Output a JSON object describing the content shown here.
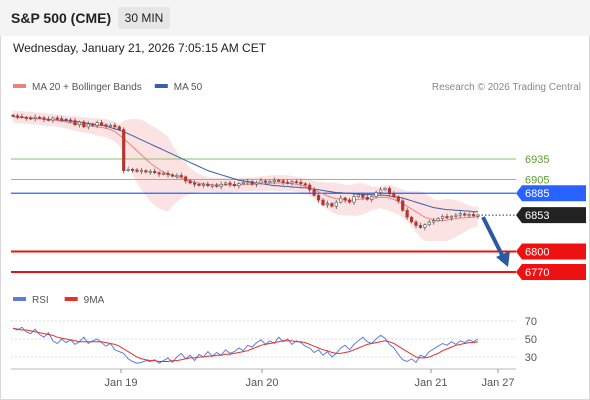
{
  "header": {
    "title": "S&P 500 (CME)",
    "interval": "30 MIN"
  },
  "datetime": "Wednesday, January 21, 2026 7:05:15 AM CET",
  "credit": "Research © 2026 Trading Central",
  "colors": {
    "ma20": "#f08080",
    "ma50": "#3b5ea8",
    "candle": "#b5362f",
    "support": "#ee1111",
    "resistance": "#8dc26b",
    "pivot": "#2962ff",
    "arrow": "#2c5aa0",
    "last": "#222222",
    "rsi": "#5b7fd8",
    "rsi_ma": "#e53030"
  },
  "legend": [
    {
      "label": "MA 20 + Bollinger Bands",
      "color": "#f08080"
    },
    {
      "label": "MA 50",
      "color": "#3b5ea8"
    }
  ],
  "rsi_legend": [
    {
      "label": "RSI",
      "color": "#5b7fd8"
    },
    {
      "label": "9MA",
      "color": "#e53030"
    }
  ],
  "chart_data": {
    "type": "candlestick",
    "x_labels": [
      "Jan 19",
      "Jan 20",
      "Jan 21",
      "Jan 27"
    ],
    "y_range": [
      6760,
      7015
    ],
    "last_price": 6853,
    "forecast_target": 6770,
    "levels": [
      {
        "value": 6935,
        "label": "6935",
        "role": "resistance"
      },
      {
        "value": 6905,
        "label": "6905",
        "role": "resistance"
      },
      {
        "value": 6885,
        "label": "6885",
        "role": "pivot"
      },
      {
        "value": 6853,
        "label": "6853",
        "role": "last"
      },
      {
        "value": 6800,
        "label": "6800",
        "role": "support"
      },
      {
        "value": 6770,
        "label": "6770",
        "role": "support"
      }
    ],
    "price_close": [
      6998,
      6997,
      6996,
      6995,
      6994,
      6996,
      6995,
      6993,
      6992,
      6995,
      6994,
      6993,
      6992,
      6991,
      6985,
      6989,
      6982,
      6986,
      6984,
      6988,
      6985,
      6983,
      6984,
      6982,
      6978,
      6918,
      6920,
      6919,
      6917,
      6918,
      6916,
      6917,
      6915,
      6913,
      6914,
      6912,
      6910,
      6911,
      6909,
      6903,
      6900,
      6898,
      6897,
      6898,
      6896,
      6897,
      6895,
      6898,
      6900,
      6898,
      6896,
      6899,
      6901,
      6902,
      6898,
      6900,
      6903,
      6901,
      6902,
      6904,
      6903,
      6901,
      6900,
      6902,
      6901,
      6899,
      6897,
      6890,
      6882,
      6875,
      6868,
      6870,
      6866,
      6872,
      6878,
      6875,
      6872,
      6880,
      6883,
      6879,
      6876,
      6880,
      6886,
      6890,
      6892,
      6884,
      6880,
      6874,
      6860,
      6850,
      6843,
      6838,
      6835,
      6839,
      6843,
      6845,
      6848,
      6851,
      6849,
      6851,
      6853,
      6855,
      6853,
      6854,
      6852,
      6853
    ],
    "ma20": [
      6997,
      6996,
      6996,
      6995,
      6995,
      6994,
      6994,
      6993,
      6992,
      6992,
      6991,
      6990,
      6989,
      6988,
      6987,
      6986,
      6985,
      6984,
      6983,
      6982,
      6981,
      6980,
      6978,
      6975,
      6970,
      6965,
      6959,
      6953,
      6947,
      6941,
      6935,
      6929,
      6924,
      6920,
      6916,
      6913,
      6911,
      6909,
      6907,
      6905,
      6903,
      6901,
      6900,
      6899,
      6898,
      6897,
      6897,
      6897,
      6897,
      6897,
      6897,
      6897,
      6898,
      6898,
      6898,
      6899,
      6899,
      6899,
      6900,
      6900,
      6900,
      6900,
      6900,
      6899,
      6898,
      6897,
      6895,
      6893,
      6890,
      6887,
      6884,
      6881,
      6879,
      6877,
      6876,
      6875,
      6875,
      6875,
      6876,
      6877,
      6877,
      6878,
      6878,
      6879,
      6879,
      6878,
      6876,
      6873,
      6870,
      6866,
      6862,
      6858,
      6854,
      6850,
      6848,
      6846,
      6845,
      6845,
      6846,
      6847,
      6848,
      6849,
      6849,
      6850,
      6850,
      6851
    ],
    "ma50": [
      6997,
      6996,
      6996,
      6995,
      6995,
      6994,
      6994,
      6993,
      6993,
      6992,
      6992,
      6991,
      6991,
      6990,
      6990,
      6989,
      6988,
      6987,
      6986,
      6985,
      6984,
      6983,
      6981,
      6979,
      6977,
      6975,
      6972,
      6969,
      6966,
      6963,
      6960,
      6957,
      6954,
      6951,
      6948,
      6945,
      6942,
      6939,
      6936,
      6933,
      6930,
      6927,
      6924,
      6921,
      6918,
      6916,
      6914,
      6912,
      6910,
      6908,
      6906,
      6904,
      6903,
      6902,
      6901,
      6900,
      6899,
      6898,
      6897,
      6896,
      6896,
      6895,
      6895,
      6894,
      6894,
      6893,
      6893,
      6892,
      6891,
      6890,
      6889,
      6888,
      6887,
      6886,
      6886,
      6885,
      6885,
      6884,
      6884,
      6883,
      6883,
      6883,
      6882,
      6882,
      6882,
      6881,
      6880,
      6879,
      6878,
      6876,
      6874,
      6872,
      6870,
      6868,
      6866,
      6864,
      6863,
      6862,
      6861,
      6861,
      6860,
      6860,
      6859,
      6859,
      6858,
      6858
    ],
    "rsi": {
      "ticks": [
        70,
        50,
        30
      ],
      "range": [
        15,
        85
      ],
      "rsi": [
        62,
        60,
        63,
        58,
        56,
        61,
        55,
        52,
        57,
        48,
        45,
        50,
        46,
        49,
        44,
        47,
        52,
        45,
        48,
        50,
        46,
        42,
        45,
        38,
        36,
        34,
        28,
        25,
        23,
        24,
        26,
        25,
        27,
        23,
        26,
        29,
        24,
        30,
        34,
        28,
        32,
        26,
        33,
        30,
        36,
        31,
        35,
        32,
        38,
        34,
        36,
        40,
        37,
        43,
        41,
        46,
        49,
        44,
        48,
        45,
        52,
        47,
        50,
        44,
        48,
        46,
        42,
        40,
        35,
        38,
        32,
        36,
        30,
        34,
        40,
        43,
        38,
        44,
        48,
        52,
        47,
        45,
        50,
        54,
        51,
        44,
        40,
        33,
        27,
        25,
        28,
        24,
        32,
        30,
        36,
        39,
        42,
        45,
        43,
        47,
        44,
        48,
        46,
        49,
        47,
        50
      ],
      "ma9": [
        62,
        61,
        60,
        60,
        59,
        58,
        57,
        56,
        55,
        54,
        52,
        51,
        50,
        49,
        48,
        47,
        47,
        47,
        47,
        47,
        47,
        46,
        45,
        44,
        42,
        39,
        36,
        33,
        30,
        28,
        27,
        26,
        26,
        25,
        25,
        25,
        26,
        26,
        27,
        28,
        29,
        29,
        30,
        30,
        31,
        31,
        32,
        32,
        33,
        33,
        34,
        35,
        36,
        37,
        39,
        41,
        43,
        44,
        45,
        46,
        47,
        48,
        48,
        48,
        47,
        47,
        46,
        44,
        42,
        40,
        38,
        37,
        35,
        34,
        34,
        35,
        36,
        38,
        40,
        42,
        44,
        45,
        46,
        47,
        48,
        47,
        45,
        42,
        39,
        36,
        33,
        30,
        29,
        29,
        30,
        32,
        34,
        37,
        39,
        41,
        43,
        44,
        45,
        46,
        46,
        47
      ]
    }
  }
}
